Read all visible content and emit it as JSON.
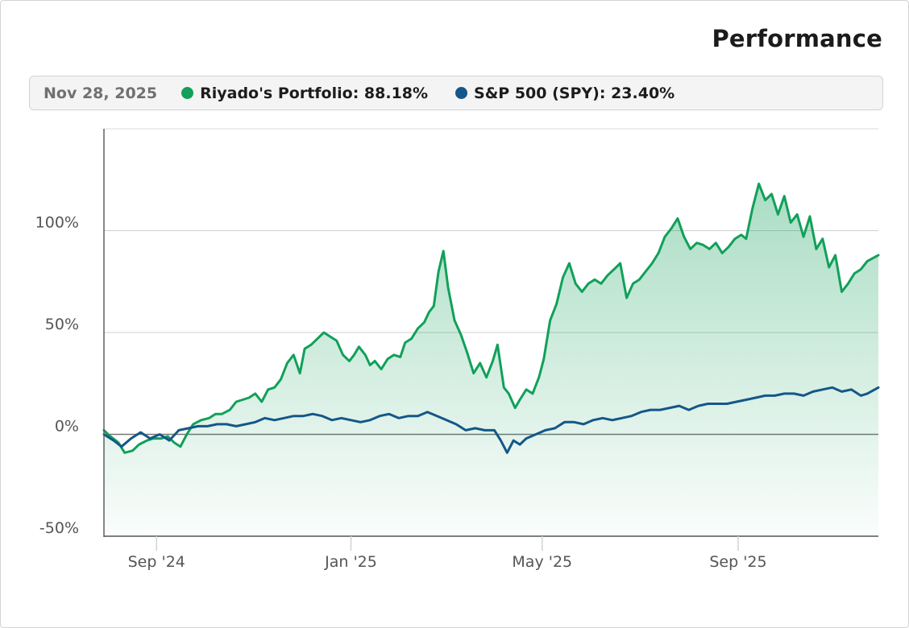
{
  "header": {
    "title": "Performance"
  },
  "legend": {
    "date": "Nov 28, 2025",
    "items": [
      {
        "name": "Riyado's Portfolio",
        "value": "88.18%",
        "color": "#11a05a"
      },
      {
        "name": "S&P 500 (SPY)",
        "value": "23.40%",
        "color": "#145788"
      }
    ]
  },
  "chart_data": {
    "type": "line",
    "title": "Performance",
    "x_range": [
      "2024-07-30",
      "2025-11-28"
    ],
    "ylim": [
      -50,
      150
    ],
    "y_ticks": [
      {
        "value": 100,
        "label": "100%"
      },
      {
        "value": 50,
        "label": "50%"
      },
      {
        "value": 0,
        "label": "0%"
      },
      {
        "value": -50,
        "label": "-50%"
      }
    ],
    "x_ticks": [
      {
        "date": "2024-09-01",
        "label": "Sep '24"
      },
      {
        "date": "2025-01-01",
        "label": "Jan '25"
      },
      {
        "date": "2025-05-01",
        "label": "May '25"
      },
      {
        "date": "2025-09-01",
        "label": "Sep '25"
      }
    ],
    "grid": "horizontal",
    "series": [
      {
        "name": "Riyado's Portfolio",
        "color": "#11a05a",
        "fill": "area",
        "points": [
          [
            "2024-07-30",
            2
          ],
          [
            "2024-08-03",
            -1
          ],
          [
            "2024-08-08",
            -4
          ],
          [
            "2024-08-12",
            -9
          ],
          [
            "2024-08-17",
            -8
          ],
          [
            "2024-08-21",
            -5
          ],
          [
            "2024-08-26",
            -3
          ],
          [
            "2024-08-30",
            -2
          ],
          [
            "2024-09-04",
            -2
          ],
          [
            "2024-09-08",
            -1
          ],
          [
            "2024-09-12",
            -4
          ],
          [
            "2024-09-16",
            -6
          ],
          [
            "2024-09-20",
            0
          ],
          [
            "2024-09-24",
            5
          ],
          [
            "2024-09-29",
            7
          ],
          [
            "2024-10-04",
            8
          ],
          [
            "2024-10-08",
            10
          ],
          [
            "2024-10-12",
            10
          ],
          [
            "2024-10-17",
            12
          ],
          [
            "2024-10-21",
            16
          ],
          [
            "2024-10-25",
            17
          ],
          [
            "2024-10-29",
            18
          ],
          [
            "2024-11-02",
            20
          ],
          [
            "2024-11-06",
            16
          ],
          [
            "2024-11-10",
            22
          ],
          [
            "2024-11-14",
            23
          ],
          [
            "2024-11-18",
            27
          ],
          [
            "2024-11-22",
            35
          ],
          [
            "2024-11-26",
            39
          ],
          [
            "2024-11-30",
            30
          ],
          [
            "2024-12-03",
            42
          ],
          [
            "2024-12-07",
            44
          ],
          [
            "2024-12-11",
            47
          ],
          [
            "2024-12-15",
            50
          ],
          [
            "2024-12-19",
            48
          ],
          [
            "2024-12-23",
            46
          ],
          [
            "2024-12-27",
            39
          ],
          [
            "2024-12-31",
            36
          ],
          [
            "2025-01-03",
            39
          ],
          [
            "2025-01-06",
            43
          ],
          [
            "2025-01-10",
            39
          ],
          [
            "2025-01-13",
            34
          ],
          [
            "2025-01-16",
            36
          ],
          [
            "2025-01-20",
            32
          ],
          [
            "2025-01-24",
            37
          ],
          [
            "2025-01-28",
            39
          ],
          [
            "2025-02-01",
            38
          ],
          [
            "2025-02-04",
            45
          ],
          [
            "2025-02-08",
            47
          ],
          [
            "2025-02-12",
            52
          ],
          [
            "2025-02-16",
            55
          ],
          [
            "2025-02-19",
            60
          ],
          [
            "2025-02-22",
            63
          ],
          [
            "2025-02-25",
            80
          ],
          [
            "2025-02-28",
            90
          ],
          [
            "2025-03-03",
            72
          ],
          [
            "2025-03-07",
            56
          ],
          [
            "2025-03-11",
            49
          ],
          [
            "2025-03-15",
            40
          ],
          [
            "2025-03-19",
            30
          ],
          [
            "2025-03-23",
            35
          ],
          [
            "2025-03-27",
            28
          ],
          [
            "2025-03-31",
            36
          ],
          [
            "2025-04-03",
            44
          ],
          [
            "2025-04-07",
            23
          ],
          [
            "2025-04-10",
            20
          ],
          [
            "2025-04-14",
            13
          ],
          [
            "2025-04-17",
            17
          ],
          [
            "2025-04-21",
            22
          ],
          [
            "2025-04-25",
            20
          ],
          [
            "2025-04-29",
            28
          ],
          [
            "2025-05-02",
            37
          ],
          [
            "2025-05-06",
            56
          ],
          [
            "2025-05-10",
            64
          ],
          [
            "2025-05-14",
            77
          ],
          [
            "2025-05-18",
            84
          ],
          [
            "2025-05-22",
            74
          ],
          [
            "2025-05-26",
            70
          ],
          [
            "2025-05-30",
            74
          ],
          [
            "2025-06-03",
            76
          ],
          [
            "2025-06-07",
            74
          ],
          [
            "2025-06-11",
            78
          ],
          [
            "2025-06-15",
            81
          ],
          [
            "2025-06-19",
            84
          ],
          [
            "2025-06-23",
            67
          ],
          [
            "2025-06-27",
            74
          ],
          [
            "2025-07-01",
            76
          ],
          [
            "2025-07-05",
            80
          ],
          [
            "2025-07-09",
            84
          ],
          [
            "2025-07-13",
            89
          ],
          [
            "2025-07-17",
            97
          ],
          [
            "2025-07-21",
            101
          ],
          [
            "2025-07-25",
            106
          ],
          [
            "2025-07-29",
            97
          ],
          [
            "2025-08-02",
            91
          ],
          [
            "2025-08-06",
            94
          ],
          [
            "2025-08-10",
            93
          ],
          [
            "2025-08-14",
            91
          ],
          [
            "2025-08-18",
            94
          ],
          [
            "2025-08-22",
            89
          ],
          [
            "2025-08-26",
            92
          ],
          [
            "2025-08-30",
            96
          ],
          [
            "2025-09-03",
            98
          ],
          [
            "2025-09-06",
            96
          ],
          [
            "2025-09-10",
            111
          ],
          [
            "2025-09-14",
            123
          ],
          [
            "2025-09-18",
            115
          ],
          [
            "2025-09-22",
            118
          ],
          [
            "2025-09-26",
            108
          ],
          [
            "2025-09-30",
            117
          ],
          [
            "2025-10-04",
            104
          ],
          [
            "2025-10-08",
            108
          ],
          [
            "2025-10-12",
            97
          ],
          [
            "2025-10-16",
            107
          ],
          [
            "2025-10-20",
            91
          ],
          [
            "2025-10-24",
            96
          ],
          [
            "2025-10-28",
            82
          ],
          [
            "2025-11-01",
            88
          ],
          [
            "2025-11-05",
            70
          ],
          [
            "2025-11-09",
            74
          ],
          [
            "2025-11-13",
            79
          ],
          [
            "2025-11-17",
            81
          ],
          [
            "2025-11-21",
            85
          ],
          [
            "2025-11-28",
            88
          ]
        ]
      },
      {
        "name": "S&P 500 (SPY)",
        "color": "#145788",
        "fill": "none",
        "points": [
          [
            "2024-07-30",
            0
          ],
          [
            "2024-08-05",
            -3
          ],
          [
            "2024-08-10",
            -6
          ],
          [
            "2024-08-16",
            -2
          ],
          [
            "2024-08-22",
            1
          ],
          [
            "2024-08-28",
            -2
          ],
          [
            "2024-09-03",
            0
          ],
          [
            "2024-09-09",
            -3
          ],
          [
            "2024-09-15",
            2
          ],
          [
            "2024-09-21",
            3
          ],
          [
            "2024-09-27",
            4
          ],
          [
            "2024-10-03",
            4
          ],
          [
            "2024-10-09",
            5
          ],
          [
            "2024-10-15",
            5
          ],
          [
            "2024-10-21",
            4
          ],
          [
            "2024-10-27",
            5
          ],
          [
            "2024-11-02",
            6
          ],
          [
            "2024-11-08",
            8
          ],
          [
            "2024-11-14",
            7
          ],
          [
            "2024-11-20",
            8
          ],
          [
            "2024-11-26",
            9
          ],
          [
            "2024-12-02",
            9
          ],
          [
            "2024-12-08",
            10
          ],
          [
            "2024-12-14",
            9
          ],
          [
            "2024-12-20",
            7
          ],
          [
            "2024-12-26",
            8
          ],
          [
            "2025-01-01",
            7
          ],
          [
            "2025-01-07",
            6
          ],
          [
            "2025-01-13",
            7
          ],
          [
            "2025-01-19",
            9
          ],
          [
            "2025-01-25",
            10
          ],
          [
            "2025-01-31",
            8
          ],
          [
            "2025-02-06",
            9
          ],
          [
            "2025-02-12",
            9
          ],
          [
            "2025-02-18",
            11
          ],
          [
            "2025-02-24",
            9
          ],
          [
            "2025-03-02",
            7
          ],
          [
            "2025-03-08",
            5
          ],
          [
            "2025-03-14",
            2
          ],
          [
            "2025-03-20",
            3
          ],
          [
            "2025-03-26",
            2
          ],
          [
            "2025-04-01",
            2
          ],
          [
            "2025-04-05",
            -3
          ],
          [
            "2025-04-09",
            -9
          ],
          [
            "2025-04-13",
            -3
          ],
          [
            "2025-04-17",
            -5
          ],
          [
            "2025-04-21",
            -2
          ],
          [
            "2025-04-27",
            0
          ],
          [
            "2025-05-03",
            2
          ],
          [
            "2025-05-09",
            3
          ],
          [
            "2025-05-15",
            6
          ],
          [
            "2025-05-21",
            6
          ],
          [
            "2025-05-27",
            5
          ],
          [
            "2025-06-02",
            7
          ],
          [
            "2025-06-08",
            8
          ],
          [
            "2025-06-14",
            7
          ],
          [
            "2025-06-20",
            8
          ],
          [
            "2025-06-26",
            9
          ],
          [
            "2025-07-02",
            11
          ],
          [
            "2025-07-08",
            12
          ],
          [
            "2025-07-14",
            12
          ],
          [
            "2025-07-20",
            13
          ],
          [
            "2025-07-26",
            14
          ],
          [
            "2025-08-01",
            12
          ],
          [
            "2025-08-07",
            14
          ],
          [
            "2025-08-13",
            15
          ],
          [
            "2025-08-19",
            15
          ],
          [
            "2025-08-25",
            15
          ],
          [
            "2025-08-31",
            16
          ],
          [
            "2025-09-06",
            17
          ],
          [
            "2025-09-12",
            18
          ],
          [
            "2025-09-18",
            19
          ],
          [
            "2025-09-24",
            19
          ],
          [
            "2025-09-30",
            20
          ],
          [
            "2025-10-06",
            20
          ],
          [
            "2025-10-12",
            19
          ],
          [
            "2025-10-18",
            21
          ],
          [
            "2025-10-24",
            22
          ],
          [
            "2025-10-30",
            23
          ],
          [
            "2025-11-05",
            21
          ],
          [
            "2025-11-11",
            22
          ],
          [
            "2025-11-17",
            19
          ],
          [
            "2025-11-21",
            20
          ],
          [
            "2025-11-28",
            23
          ]
        ]
      }
    ]
  }
}
